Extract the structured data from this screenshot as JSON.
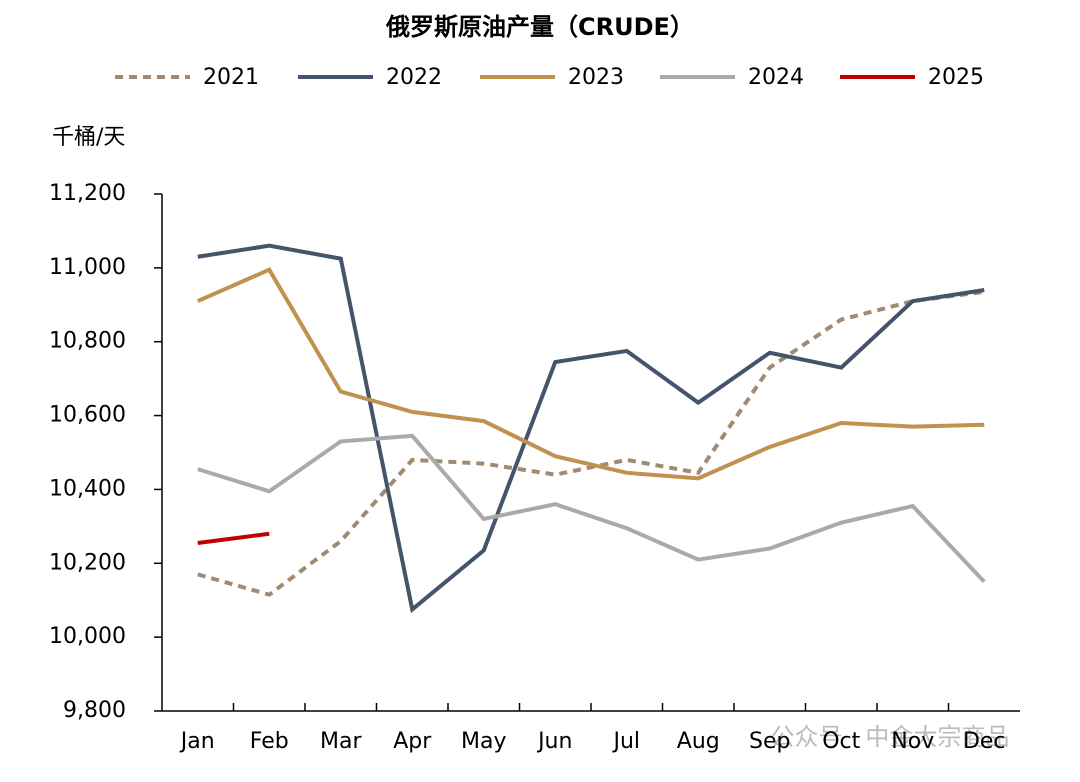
{
  "chart_data": {
    "type": "line",
    "title": "俄罗斯原油产量（CRUDE）",
    "y_label": "千桶/天",
    "categories": [
      "Jan",
      "Feb",
      "Mar",
      "Apr",
      "May",
      "Jun",
      "Jul",
      "Aug",
      "Sep",
      "Oct",
      "Nov",
      "Dec"
    ],
    "series": [
      {
        "name": "2021",
        "color": "#a08a72",
        "dashed": true,
        "values": [
          10170,
          10115,
          10260,
          10480,
          10470,
          10440,
          10480,
          10445,
          10730,
          10860,
          10910,
          10935
        ]
      },
      {
        "name": "2022",
        "color": "#44546a",
        "values": [
          11030,
          11060,
          11025,
          10075,
          10235,
          10745,
          10775,
          10635,
          10770,
          10730,
          10910,
          10940
        ]
      },
      {
        "name": "2023",
        "color": "#c0914f",
        "values": [
          10910,
          10995,
          10665,
          10610,
          10585,
          10490,
          10445,
          10430,
          10515,
          10580,
          10570,
          10575
        ]
      },
      {
        "name": "2024",
        "color": "#aaaaaa",
        "values": [
          10455,
          10395,
          10530,
          10545,
          10320,
          10360,
          10295,
          10210,
          10240,
          10310,
          10355,
          10150
        ]
      },
      {
        "name": "2025",
        "color": "#c00000",
        "values": [
          10255,
          10280,
          null,
          null,
          null,
          null,
          null,
          null,
          null,
          null,
          null,
          null
        ]
      }
    ],
    "ylim": [
      9800,
      11200
    ],
    "yticks": [
      {
        "value": 9800,
        "label": "9,800"
      },
      {
        "value": 10000,
        "label": "10,000"
      },
      {
        "value": 10200,
        "label": "10,200"
      },
      {
        "value": 10400,
        "label": "10,400"
      },
      {
        "value": 10600,
        "label": "10,600"
      },
      {
        "value": 10800,
        "label": "10,800"
      },
      {
        "value": 11000,
        "label": "11,000"
      },
      {
        "value": 11200,
        "label": "11,200"
      }
    ],
    "legend": "top",
    "watermark": "公众号 · 中金大宗商品"
  }
}
